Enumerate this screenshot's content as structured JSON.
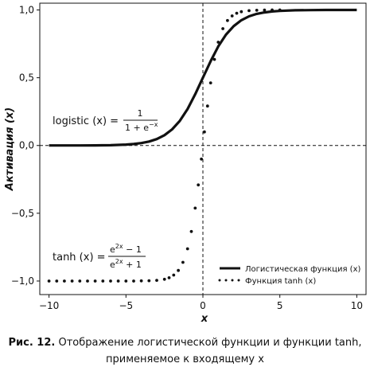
{
  "chart_data": {
    "type": "line",
    "xlabel": "x",
    "ylabel": "Активация (x)",
    "xlim": [
      -10.6,
      10.6
    ],
    "ylim": [
      -1.1,
      1.05
    ],
    "xticks": [
      -10,
      -5,
      0,
      5,
      10
    ],
    "xtick_labels": [
      "−10",
      "−5",
      "0",
      "5",
      "10"
    ],
    "yticks": [
      -1.0,
      -0.5,
      0.0,
      0.5,
      1.0
    ],
    "ytick_labels": [
      "−1,0",
      "−0,5",
      "0,0",
      "0,5",
      "1,0"
    ],
    "grid": false,
    "legend_position": "bottom-right",
    "reference_lines": {
      "x": 0,
      "y": 0,
      "style": "dashed"
    },
    "series": [
      {
        "name": "Логистическая функция (x)",
        "style": "solid",
        "color": "#111111",
        "x": [
          -10,
          -9,
          -8,
          -7,
          -6,
          -5,
          -4.5,
          -4,
          -3.5,
          -3,
          -2.5,
          -2,
          -1.5,
          -1,
          -0.5,
          0,
          0.5,
          1,
          1.5,
          2,
          2.5,
          3,
          3.5,
          4,
          4.5,
          5,
          6,
          7,
          8,
          9,
          10
        ],
        "y": [
          0.0,
          0.0,
          0.0,
          0.001,
          0.002,
          0.007,
          0.011,
          0.018,
          0.029,
          0.047,
          0.076,
          0.119,
          0.182,
          0.269,
          0.378,
          0.5,
          0.622,
          0.731,
          0.818,
          0.881,
          0.924,
          0.953,
          0.971,
          0.982,
          0.989,
          0.993,
          0.998,
          0.999,
          1.0,
          1.0,
          1.0
        ]
      },
      {
        "name": "Функция tanh (x)",
        "style": "dotted",
        "color": "#111111",
        "x": [
          -10,
          -9.5,
          -9,
          -8.5,
          -8,
          -7.5,
          -7,
          -6.5,
          -6,
          -5.5,
          -5,
          -4.5,
          -4,
          -3.5,
          -3,
          -2.5,
          -2.2,
          -1.9,
          -1.6,
          -1.3,
          -1.0,
          -0.75,
          -0.5,
          -0.3,
          -0.1,
          0.1,
          0.3,
          0.5,
          0.75,
          1.0,
          1.3,
          1.6,
          1.9,
          2.2,
          2.5,
          3,
          3.5,
          4,
          4.5,
          5
        ],
        "y": [
          -1,
          -1,
          -1,
          -1,
          -1,
          -1,
          -1,
          -1,
          -1,
          -1,
          -1,
          -1,
          -0.999,
          -0.998,
          -0.995,
          -0.987,
          -0.976,
          -0.956,
          -0.922,
          -0.862,
          -0.762,
          -0.635,
          -0.462,
          -0.291,
          -0.1,
          0.1,
          0.291,
          0.462,
          0.635,
          0.762,
          0.862,
          0.922,
          0.956,
          0.976,
          0.987,
          0.995,
          0.998,
          0.999,
          1,
          1
        ]
      }
    ]
  },
  "formulas": {
    "logistic": {
      "lhs": "logistic (x) =",
      "numerator": "1",
      "denominator": "1 + e",
      "denominator_exp": "−x"
    },
    "tanh": {
      "lhs": "tanh (x) =",
      "numerator": "e",
      "numerator_exp": "2x",
      "numerator_tail": " − 1",
      "denominator": "e",
      "denominator_exp": "2x",
      "denominator_tail": " + 1"
    }
  },
  "caption": {
    "label": "Рис. 12.",
    "line1": " Отображение логистической функции и функции tanh,",
    "line2": "применяемое к входящему x"
  }
}
